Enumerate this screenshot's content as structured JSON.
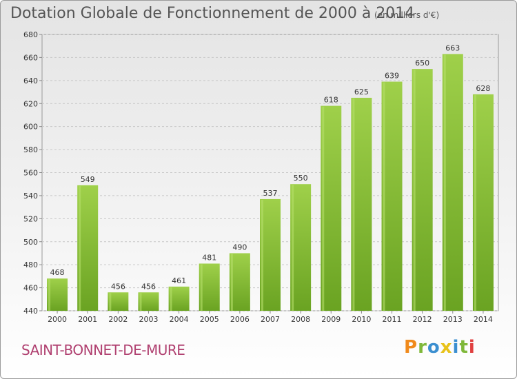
{
  "header": {
    "title": "Dotation Globale de Fonctionnement de 2000 à 2014",
    "unit": "(en milliers d'€)"
  },
  "footer": {
    "commune": "SAINT-BONNET-DE-MURE",
    "logo_letters": [
      "P",
      "r",
      "o",
      "x",
      "i",
      "t",
      "i"
    ],
    "logo_colors": [
      "#f08a1c",
      "#7fb83a",
      "#3b8fd0",
      "#e8c21a",
      "#3b8fd0",
      "#7fb83a",
      "#e04040"
    ]
  },
  "chart_data": {
    "type": "bar",
    "title": "Dotation Globale de Fonctionnement de 2000 à 2014",
    "unit": "(en milliers d'€)",
    "categories": [
      "2000",
      "2001",
      "2002",
      "2003",
      "2004",
      "2005",
      "2006",
      "2007",
      "2008",
      "2009",
      "2010",
      "2011",
      "2012",
      "2013",
      "2014"
    ],
    "values": [
      468,
      549,
      456,
      456,
      461,
      481,
      490,
      537,
      550,
      618,
      625,
      639,
      650,
      663,
      628
    ],
    "ylim": [
      440,
      680
    ],
    "yticks": [
      440,
      460,
      480,
      500,
      520,
      540,
      560,
      580,
      600,
      620,
      640,
      660,
      680
    ],
    "grid": true,
    "bar_color": "#8cc43c",
    "bar_color_dark": "#6aa322"
  }
}
